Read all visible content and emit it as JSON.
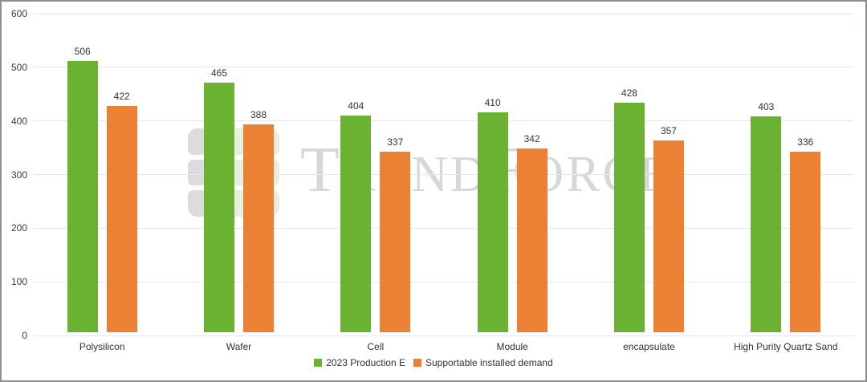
{
  "frame": {
    "background": "#ffffff",
    "border_color": "#8e8e8e"
  },
  "watermark": {
    "text": "TrendForce",
    "text_color": "#d7d7d7",
    "logo": {
      "rows": 3,
      "gray": "#dcdcdc",
      "green": "#e9efdf"
    }
  },
  "axis": {
    "y_tick_labels": [
      "600",
      "500",
      "400",
      "300",
      "200",
      "100",
      "0"
    ],
    "gridline_color": "#e0e8f2",
    "tick_text_color": "#3b3b3b"
  },
  "chart_data": {
    "type": "bar",
    "title": "",
    "xlabel": "",
    "ylabel": "",
    "grid": true,
    "legend_position": "bottom",
    "ylim": [
      0,
      600
    ],
    "ytick_step": 100,
    "categories": [
      "Polysilicon",
      "Wafer",
      "Cell",
      "Module",
      "encapsulate",
      "High Purity Quartz Sand"
    ],
    "series": [
      {
        "name": "2023 Production E",
        "color": "#6BB132",
        "values": [
          506,
          465,
          404,
          410,
          428,
          403
        ]
      },
      {
        "name": "Supportable installed demand",
        "color": "#EC8033",
        "values": [
          422,
          388,
          337,
          342,
          357,
          336
        ]
      }
    ]
  }
}
